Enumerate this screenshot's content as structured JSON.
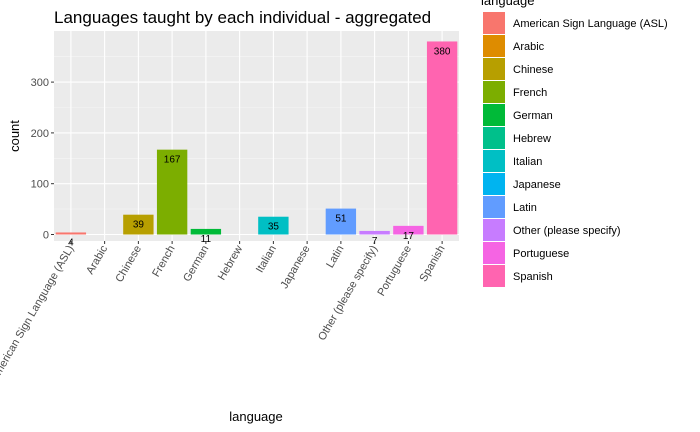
{
  "chart_data": {
    "type": "bar",
    "title": "Languages taught by each individual - aggregated",
    "xlabel": "language",
    "ylabel": "count",
    "ylim": [
      0,
      390
    ],
    "yticks": [
      0,
      100,
      200,
      300
    ],
    "grid": true,
    "legend_title": "language",
    "legend_position": "right",
    "categories": [
      "American Sign Language (ASL)",
      "Arabic",
      "Chinese",
      "French",
      "German",
      "Hebrew",
      "Italian",
      "Japanese",
      "Latin",
      "Other (please specify)",
      "Portuguese",
      "Spanish"
    ],
    "values": [
      4,
      0,
      39,
      167,
      11,
      0,
      35,
      0,
      51,
      7,
      17,
      380
    ],
    "labels": [
      "4",
      "",
      "39",
      "167",
      "11",
      "",
      "35",
      "",
      "51",
      "7",
      "17",
      "380"
    ],
    "colors": [
      "#F8766D",
      "#DE8C00",
      "#B79F00",
      "#7CAE00",
      "#00BA38",
      "#00C08B",
      "#00BFC4",
      "#00B4F0",
      "#619CFF",
      "#C77CFF",
      "#F564E3",
      "#FF64B0"
    ]
  }
}
